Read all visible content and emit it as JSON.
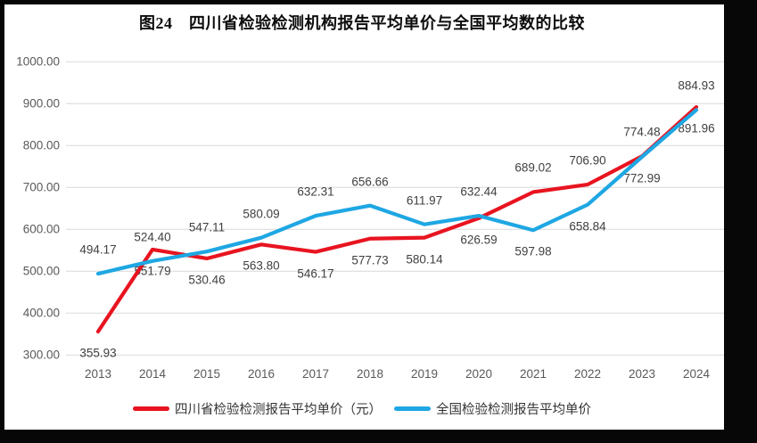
{
  "title": {
    "text": "图24　四川省检验检测机构报告平均单价与全国平均数的比较"
  },
  "colors": {
    "sichuan_red": "#e81420",
    "national_blue": "#1ea7e3",
    "gridline": "#d9d9d9",
    "axis_text": "#595959",
    "data_label_text": "#404040",
    "frame": "#070707"
  },
  "legend": [
    {
      "label": "四川省检验检测报告平均单价（元）",
      "color": "#e81420"
    },
    {
      "label": "全国检验检测报告平均单价",
      "color": "#1ea7e3"
    }
  ],
  "chart_data": {
    "type": "line",
    "title": "图24　四川省检验检测机构报告平均单价与全国平均数的比较",
    "x_categories": [
      "2013",
      "2014",
      "2015",
      "2016",
      "2017",
      "2018",
      "2019",
      "2020",
      "2021",
      "2022",
      "2023",
      "2024"
    ],
    "series": [
      {
        "name": "四川省检验检测报告平均单价（元）",
        "color": "#e81420",
        "values": [
          355.93,
          551.79,
          530.46,
          563.8,
          546.17,
          577.73,
          580.14,
          626.59,
          689.02,
          706.9,
          774.48,
          891.96
        ],
        "label_positions": [
          "below",
          "below",
          "below",
          "below",
          "below",
          "below",
          "below",
          "below",
          "above",
          "above",
          "above",
          "below"
        ]
      },
      {
        "name": "全国检验检测报告平均单价",
        "color": "#1ea7e3",
        "values": [
          494.17,
          524.4,
          547.11,
          580.09,
          632.31,
          656.66,
          611.97,
          632.44,
          597.98,
          658.84,
          772.99,
          884.93
        ],
        "label_positions": [
          "above",
          "above",
          "above",
          "above",
          "above",
          "above",
          "above",
          "above",
          "below",
          "below",
          "below",
          "above"
        ]
      }
    ],
    "ylim": [
      300,
      1000
    ],
    "ytick_labels": [
      "1000.00",
      "900.00",
      "800.00",
      "700.00",
      "600.00",
      "500.00",
      "400.00",
      "300.00"
    ],
    "xlabel": "",
    "ylabel": "",
    "grid": true,
    "legend_position": "bottom",
    "value_format": "2dp"
  }
}
